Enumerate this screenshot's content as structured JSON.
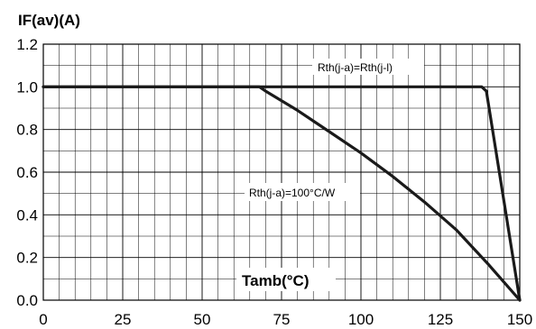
{
  "chart_data": {
    "type": "line",
    "title": "",
    "ylabel": "IF(av)(A)",
    "xlabel": "Tamb(°C)",
    "xlim": [
      0,
      150
    ],
    "ylim": [
      0,
      1.2
    ],
    "xticks": [
      "0",
      "25",
      "50",
      "75",
      "100",
      "125",
      "150"
    ],
    "yticks": [
      "0.0",
      "0.2",
      "0.4",
      "0.6",
      "0.8",
      "1.0",
      "1.2"
    ],
    "grid": true,
    "series": [
      {
        "name": "Rth(j-a)=Rth(j-l)",
        "x": [
          0,
          138,
          139.5,
          150
        ],
        "y": [
          1.0,
          1.0,
          0.98,
          0.0
        ]
      },
      {
        "name": "Rth(j-a)=100°C/W",
        "x": [
          0,
          68,
          70,
          80,
          90,
          100,
          110,
          120,
          130,
          140,
          150
        ],
        "y": [
          1.0,
          1.0,
          0.98,
          0.89,
          0.79,
          0.69,
          0.58,
          0.46,
          0.33,
          0.17,
          0.0
        ]
      }
    ],
    "annotations": [
      "Rth(j-a)=Rth(j-l)",
      "Rth(j-a)=100°C/W"
    ]
  }
}
